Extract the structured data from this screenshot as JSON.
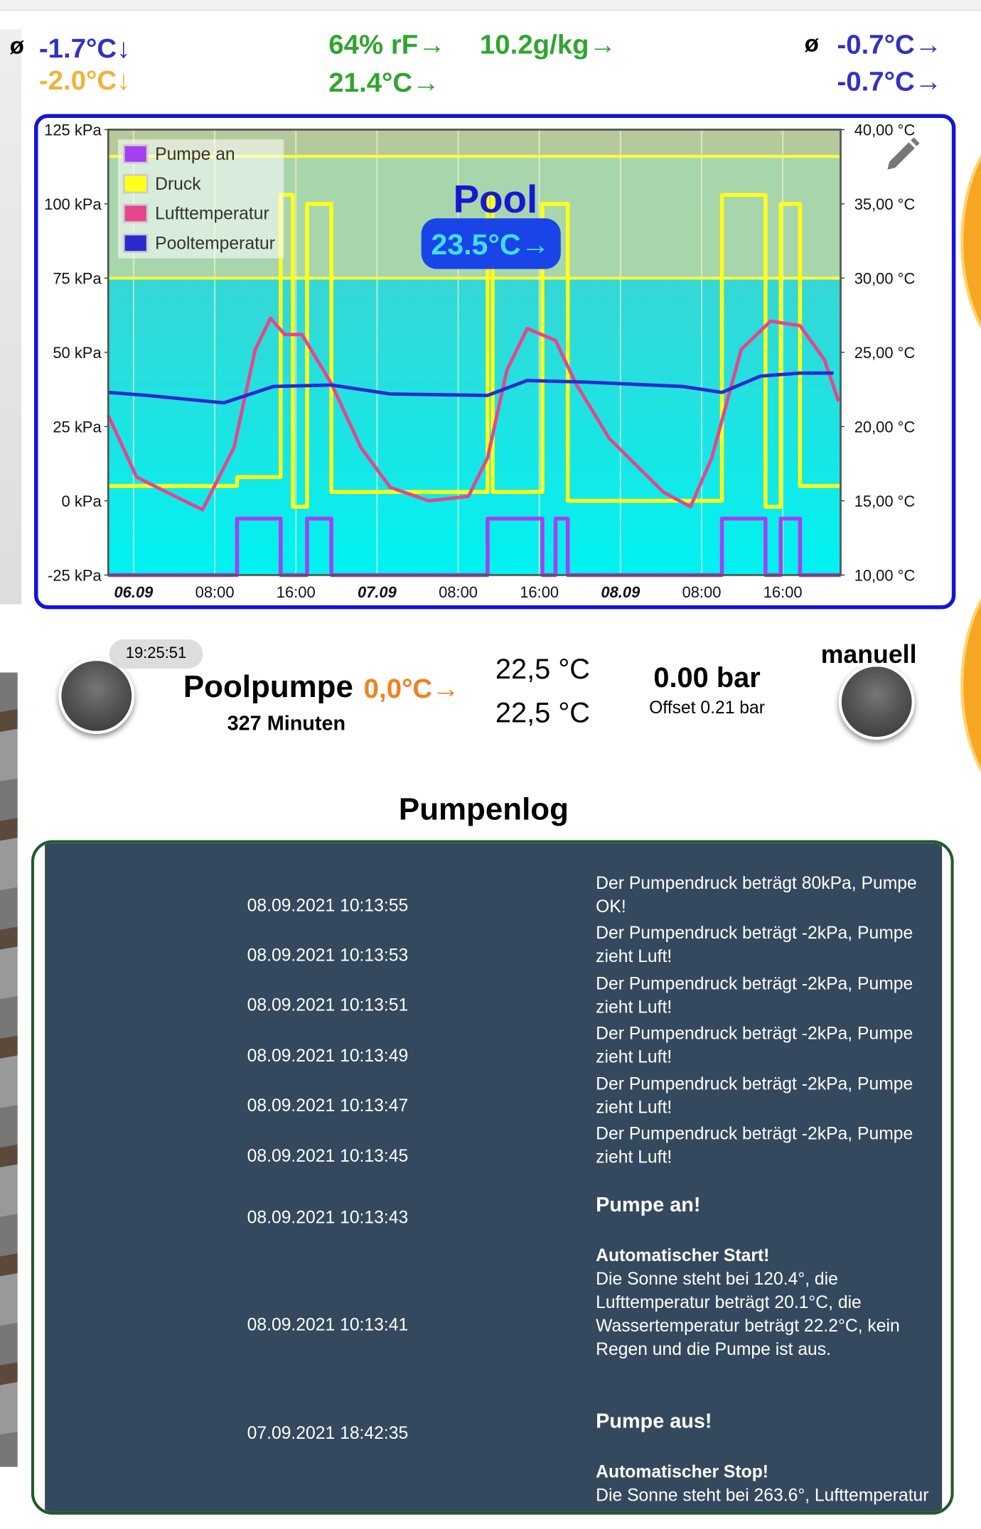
{
  "header": {
    "left": {
      "symbol": "ø",
      "value1": "-1.7°C↓",
      "value2": "-2.0°C↓"
    },
    "middle": {
      "humidity": "64% rF→",
      "absolute": "10.2g/kg→",
      "temperature": "21.4°C→"
    },
    "right": {
      "symbol": "ø",
      "value1": "-0.7°C→",
      "value2": "-0.7°C→"
    }
  },
  "chart_data": {
    "type": "line",
    "title": "Pool",
    "badge": "23.5°C→",
    "xlim": [
      -2.5,
      69.7
    ],
    "xticks": [
      {
        "value": 0,
        "label": "06.09"
      },
      {
        "value": 8,
        "label": "08:00"
      },
      {
        "value": 16,
        "label": "16:00"
      },
      {
        "value": 24,
        "label": "07.09"
      },
      {
        "value": 32,
        "label": "08:00"
      },
      {
        "value": 40,
        "label": "16:00"
      },
      {
        "value": 48,
        "label": "08.09"
      },
      {
        "value": 56,
        "label": "08:00"
      },
      {
        "value": 64,
        "label": "16:00"
      }
    ],
    "ylim": [
      -25,
      125
    ],
    "yticks": [
      {
        "value": 125,
        "label": "125 kPa"
      },
      {
        "value": 100,
        "label": "100 kPa"
      },
      {
        "value": 75,
        "label": "75 kPa"
      },
      {
        "value": 50,
        "label": "50 kPa"
      },
      {
        "value": 25,
        "label": "25 kPa"
      },
      {
        "value": 0,
        "label": "0 kPa"
      },
      {
        "value": -25,
        "label": "-25 kPa"
      }
    ],
    "y2lim": [
      10,
      40
    ],
    "y2ticks": [
      {
        "value": 40,
        "label": "40,00 °C"
      },
      {
        "value": 35,
        "label": "35,00 °C"
      },
      {
        "value": 30,
        "label": "30,00 °C"
      },
      {
        "value": 25,
        "label": "25,00 °C"
      },
      {
        "value": 20,
        "label": "20,00 °C"
      },
      {
        "value": 15,
        "label": "15,00 °C"
      },
      {
        "value": 10,
        "label": "10,00 °C"
      }
    ],
    "grid": "x",
    "legend": "top-left",
    "thresholds": [
      116,
      75
    ],
    "threshold_color": "#ffff40",
    "series": [
      {
        "name": "Pumpe an",
        "color": "#a43ff2",
        "x": [
          -2.5,
          10.2,
          10.2,
          14.5,
          14.5,
          17.1,
          17.1,
          19.5,
          19.5,
          34.9,
          34.9,
          40.3,
          40.3,
          41.6,
          41.6,
          42.8,
          42.8,
          58.0,
          58.0,
          62.3,
          62.3,
          63.8,
          63.8,
          65.7,
          65.7,
          69.7
        ],
        "values": [
          -25,
          -25,
          -6,
          -6,
          -25,
          -25,
          -6,
          -6,
          -25,
          -25,
          -6,
          -6,
          -25,
          -25,
          -6,
          -6,
          -25,
          -25,
          -6,
          -6,
          -25,
          -25,
          -6,
          -6,
          -25,
          -25
        ]
      },
      {
        "name": "Druck",
        "color": "#ffff1a",
        "x": [
          -2.5,
          10.2,
          10.2,
          14.5,
          14.5,
          15.7,
          15.7,
          17.1,
          17.1,
          19.5,
          19.5,
          34.9,
          34.9,
          35.4,
          35.4,
          40.3,
          40.3,
          42.8,
          42.8,
          58.0,
          58.0,
          62.3,
          62.3,
          63.8,
          63.8,
          65.7,
          65.7,
          69.7
        ],
        "values": [
          5,
          5,
          8,
          8,
          103,
          103,
          -2,
          -2,
          100,
          100,
          3,
          3,
          103,
          103,
          3,
          3,
          100,
          100,
          0,
          0,
          103,
          103,
          -2,
          -2,
          100,
          100,
          5,
          5
        ]
      },
      {
        "name": "Lufttemperatur",
        "color": "#e5468c",
        "axis": "y2",
        "x": [
          -2.5,
          0.3,
          4.1,
          6.8,
          9.9,
          12.0,
          13.5,
          14.9,
          16.6,
          19.5,
          22.4,
          25.3,
          29.1,
          33.0,
          34.9,
          36.8,
          38.8,
          41.6,
          43.6,
          46.9,
          52.2,
          54.9,
          57.0,
          59.9,
          62.8,
          65.7,
          68.1,
          69.5
        ],
        "values": [
          20.75,
          16.6,
          15.3,
          14.4,
          18.6,
          25.2,
          27.3,
          26.2,
          26.2,
          22.9,
          18.6,
          15.9,
          15.0,
          15.3,
          17.9,
          23.8,
          26.6,
          25.8,
          22.9,
          19.2,
          15.6,
          14.6,
          17.9,
          25.2,
          27.1,
          26.8,
          24.5,
          21.7
        ]
      },
      {
        "name": "Pooltemperatur",
        "color": "#2a2ace",
        "axis": "y2",
        "x": [
          -2.5,
          1.3,
          8.9,
          13.8,
          19.5,
          25.3,
          34.9,
          38.8,
          44.5,
          54.1,
          58.0,
          61.8,
          65.7,
          69.0
        ],
        "values": [
          22.3,
          22.1,
          21.6,
          22.7,
          22.8,
          22.2,
          22.1,
          23.1,
          23.0,
          22.7,
          22.3,
          23.4,
          23.6,
          23.6
        ]
      }
    ]
  },
  "pump": {
    "time": "19:25:51",
    "name": "Poolpumpe",
    "delta": "0,0°C→",
    "runtime": "327 Minuten",
    "temp1": "22,5 °C",
    "temp2": "22,5 °C",
    "pressure": "0.00 bar",
    "offset": "Offset 0.21 bar",
    "mode": "manuell"
  },
  "log": {
    "title": "Pumpenlog",
    "entries": [
      {
        "time": "08.09.2021 10:13:55",
        "message": "Der Pumpendruck beträgt 80kPa, Pumpe OK!"
      },
      {
        "time": "08.09.2021 10:13:53",
        "message": "Der Pumpendruck beträgt -2kPa, Pumpe zieht Luft!"
      },
      {
        "time": "08.09.2021 10:13:51",
        "message": "Der Pumpendruck beträgt -2kPa, Pumpe zieht Luft!"
      },
      {
        "time": "08.09.2021 10:13:49",
        "message": "Der Pumpendruck beträgt -2kPa, Pumpe zieht Luft!"
      },
      {
        "time": "08.09.2021 10:13:47",
        "message": "Der Pumpendruck beträgt -2kPa, Pumpe zieht Luft!"
      },
      {
        "time": "08.09.2021 10:13:45",
        "message": "Der Pumpendruck beträgt -2kPa, Pumpe zieht Luft!"
      },
      {
        "time": "08.09.2021 10:13:43",
        "heading": "Pumpe an!"
      },
      {
        "time": "08.09.2021 10:13:41",
        "heading": "Automatischer Start!",
        "message": "Die Sonne steht bei 120.4°, die Lufttemperatur beträgt 20.1°C, die Wassertemperatur beträgt 22.2°C, kein Regen und die Pumpe ist aus."
      },
      {
        "time": "07.09.2021 18:42:35",
        "heading": "Pumpe aus!"
      },
      {
        "heading": "Automatischer Stop!",
        "message": "Die Sonne steht bei 263.6°, Lufttemperatur"
      }
    ]
  }
}
